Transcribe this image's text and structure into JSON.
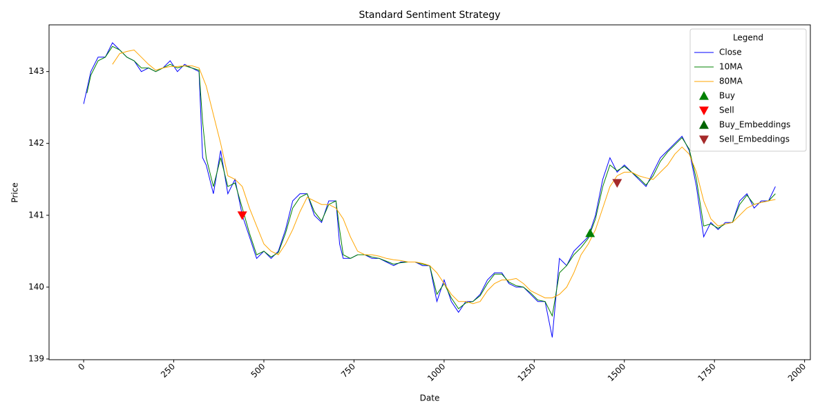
{
  "chart_data": {
    "type": "line",
    "title": "Standard Sentiment Strategy",
    "x_label": "Date",
    "y_label": "Price",
    "xlim": [
      -96,
      2016
    ],
    "ylim": [
      138.99,
      143.65
    ],
    "xticks": [
      0,
      250,
      500,
      750,
      1000,
      1250,
      1500,
      1750,
      2000
    ],
    "yticks": [
      139,
      140,
      141,
      142,
      143
    ],
    "legend_title": "Legend",
    "legend": "upper right",
    "series": [
      {
        "name": "Close",
        "color": "#0000ff",
        "kind": "line",
        "x": [
          0,
          20,
          40,
          60,
          80,
          100,
          120,
          140,
          160,
          180,
          200,
          220,
          240,
          260,
          280,
          300,
          320,
          330,
          340,
          360,
          380,
          400,
          420,
          440,
          460,
          480,
          500,
          520,
          540,
          560,
          580,
          600,
          620,
          640,
          660,
          680,
          700,
          710,
          720,
          740,
          760,
          780,
          800,
          820,
          840,
          860,
          880,
          900,
          920,
          940,
          960,
          980,
          1000,
          1020,
          1040,
          1060,
          1080,
          1100,
          1120,
          1140,
          1160,
          1180,
          1200,
          1220,
          1240,
          1260,
          1280,
          1300,
          1320,
          1340,
          1360,
          1380,
          1400,
          1420,
          1440,
          1460,
          1480,
          1500,
          1520,
          1540,
          1560,
          1580,
          1600,
          1620,
          1640,
          1660,
          1680,
          1700,
          1720,
          1740,
          1760,
          1780,
          1800,
          1820,
          1840,
          1860,
          1880,
          1900,
          1919
        ],
        "values": [
          142.55,
          143.0,
          143.2,
          143.2,
          143.4,
          143.3,
          143.2,
          143.15,
          143.0,
          143.05,
          143.0,
          143.05,
          143.15,
          143.0,
          143.1,
          143.05,
          143.0,
          141.8,
          141.7,
          141.3,
          141.9,
          141.3,
          141.5,
          141.0,
          140.7,
          140.4,
          140.5,
          140.4,
          140.5,
          140.8,
          141.2,
          141.3,
          141.3,
          141.0,
          140.9,
          141.2,
          141.2,
          140.6,
          140.4,
          140.4,
          140.45,
          140.45,
          140.4,
          140.4,
          140.35,
          140.3,
          140.35,
          140.35,
          140.35,
          140.3,
          140.3,
          139.8,
          140.1,
          139.8,
          139.65,
          139.8,
          139.8,
          139.9,
          140.1,
          140.2,
          140.2,
          140.05,
          140.0,
          140.0,
          139.9,
          139.8,
          139.8,
          139.3,
          140.4,
          140.3,
          140.5,
          140.6,
          140.7,
          141.0,
          141.5,
          141.8,
          141.6,
          141.7,
          141.6,
          141.5,
          141.4,
          141.6,
          141.8,
          141.9,
          142.0,
          142.1,
          141.9,
          141.4,
          140.7,
          140.9,
          140.8,
          140.9,
          140.9,
          141.2,
          141.3,
          141.1,
          141.2,
          141.2,
          141.4
        ]
      },
      {
        "name": "10MA",
        "color": "#008000",
        "kind": "line",
        "x": [
          9,
          20,
          40,
          60,
          80,
          100,
          120,
          140,
          160,
          180,
          200,
          220,
          240,
          260,
          280,
          300,
          320,
          330,
          340,
          360,
          380,
          400,
          420,
          440,
          460,
          480,
          500,
          520,
          540,
          560,
          580,
          600,
          620,
          640,
          660,
          680,
          700,
          710,
          720,
          740,
          760,
          780,
          800,
          820,
          840,
          860,
          880,
          900,
          920,
          940,
          960,
          980,
          1000,
          1020,
          1040,
          1060,
          1080,
          1100,
          1120,
          1140,
          1160,
          1180,
          1200,
          1220,
          1240,
          1260,
          1280,
          1300,
          1320,
          1340,
          1360,
          1380,
          1400,
          1420,
          1440,
          1460,
          1480,
          1500,
          1520,
          1540,
          1560,
          1580,
          1600,
          1620,
          1640,
          1660,
          1680,
          1700,
          1720,
          1740,
          1760,
          1780,
          1800,
          1820,
          1840,
          1860,
          1880,
          1900,
          1919
        ],
        "values": [
          142.7,
          142.95,
          143.15,
          143.2,
          143.35,
          143.3,
          143.2,
          143.15,
          143.05,
          143.05,
          143.0,
          143.05,
          143.1,
          143.05,
          143.08,
          143.05,
          143.02,
          142.3,
          141.8,
          141.4,
          141.8,
          141.4,
          141.45,
          141.1,
          140.75,
          140.45,
          140.5,
          140.42,
          140.48,
          140.75,
          141.1,
          141.25,
          141.3,
          141.05,
          140.92,
          141.15,
          141.2,
          140.8,
          140.45,
          140.4,
          140.45,
          140.45,
          140.42,
          140.4,
          140.36,
          140.32,
          140.34,
          140.35,
          140.35,
          140.32,
          140.3,
          139.9,
          140.05,
          139.85,
          139.7,
          139.78,
          139.8,
          139.88,
          140.05,
          140.18,
          140.18,
          140.07,
          140.02,
          140.0,
          139.92,
          139.82,
          139.8,
          139.6,
          140.2,
          140.3,
          140.45,
          140.55,
          140.68,
          140.95,
          141.4,
          141.7,
          141.62,
          141.68,
          141.6,
          141.52,
          141.42,
          141.55,
          141.75,
          141.88,
          141.98,
          142.08,
          141.92,
          141.5,
          140.85,
          140.88,
          140.82,
          140.88,
          140.9,
          141.15,
          141.28,
          141.15,
          141.18,
          141.2,
          141.3
        ]
      },
      {
        "name": "80MA",
        "color": "#ffa500",
        "kind": "line",
        "x": [
          80,
          100,
          120,
          140,
          160,
          180,
          200,
          220,
          240,
          260,
          280,
          300,
          320,
          340,
          360,
          380,
          400,
          420,
          440,
          460,
          480,
          500,
          520,
          540,
          560,
          580,
          600,
          620,
          640,
          660,
          680,
          700,
          720,
          740,
          760,
          780,
          800,
          820,
          840,
          860,
          880,
          900,
          920,
          940,
          960,
          980,
          1000,
          1020,
          1040,
          1060,
          1080,
          1100,
          1120,
          1140,
          1160,
          1180,
          1200,
          1220,
          1240,
          1260,
          1280,
          1300,
          1320,
          1340,
          1360,
          1380,
          1400,
          1420,
          1440,
          1460,
          1480,
          1500,
          1520,
          1540,
          1560,
          1580,
          1600,
          1620,
          1640,
          1660,
          1680,
          1700,
          1720,
          1740,
          1760,
          1780,
          1800,
          1820,
          1840,
          1860,
          1880,
          1900,
          1919
        ],
        "values": [
          143.1,
          143.25,
          143.28,
          143.3,
          143.2,
          143.1,
          143.02,
          143.05,
          143.07,
          143.07,
          143.08,
          143.08,
          143.05,
          142.8,
          142.4,
          142.0,
          141.55,
          141.5,
          141.4,
          141.1,
          140.85,
          140.6,
          140.5,
          140.45,
          140.6,
          140.8,
          141.05,
          141.25,
          141.2,
          141.15,
          141.15,
          141.1,
          140.95,
          140.7,
          140.5,
          140.45,
          140.45,
          140.43,
          140.4,
          140.38,
          140.37,
          140.35,
          140.35,
          140.33,
          140.3,
          140.2,
          140.05,
          139.9,
          139.8,
          139.8,
          139.77,
          139.8,
          139.95,
          140.05,
          140.1,
          140.1,
          140.12,
          140.05,
          139.95,
          139.9,
          139.85,
          139.85,
          139.9,
          140.0,
          140.2,
          140.45,
          140.6,
          140.8,
          141.1,
          141.4,
          141.55,
          141.6,
          141.6,
          141.55,
          141.52,
          141.5,
          141.6,
          141.7,
          141.85,
          141.95,
          141.85,
          141.6,
          141.2,
          140.95,
          140.85,
          140.88,
          140.9,
          141.0,
          141.1,
          141.15,
          141.18,
          141.2,
          141.22
        ]
      },
      {
        "name": "Buy",
        "color": "#008000",
        "kind": "scatter",
        "marker": "up",
        "x": [
          1405
        ],
        "values": [
          140.75
        ]
      },
      {
        "name": "Sell",
        "color": "#ff0000",
        "kind": "scatter",
        "marker": "down",
        "x": [
          440
        ],
        "values": [
          141.0
        ]
      },
      {
        "name": "Buy_Embeddings",
        "color": "#006400",
        "kind": "scatter",
        "marker": "up",
        "x": [],
        "values": []
      },
      {
        "name": "Sell_Embeddings",
        "color": "#a52a2a",
        "kind": "scatter",
        "marker": "down",
        "x": [
          1480
        ],
        "values": [
          141.45
        ]
      }
    ]
  }
}
